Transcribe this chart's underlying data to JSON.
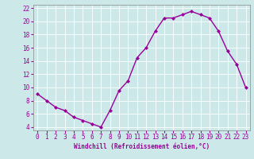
{
  "x": [
    0,
    1,
    2,
    3,
    4,
    5,
    6,
    7,
    8,
    9,
    10,
    11,
    12,
    13,
    14,
    15,
    16,
    17,
    18,
    19,
    20,
    21,
    22,
    23
  ],
  "y": [
    9,
    8,
    7,
    6.5,
    5.5,
    5,
    4.5,
    4,
    6.5,
    9.5,
    11,
    14.5,
    16,
    18.5,
    20.5,
    20.5,
    21,
    21.5,
    21,
    20.5,
    18.5,
    15.5,
    13.5,
    10
  ],
  "line_color": "#990099",
  "marker": "D",
  "marker_size": 2.0,
  "linewidth": 1.0,
  "xlabel": "Windchill (Refroidissement éolien,°C)",
  "xlabel_fontsize": 5.5,
  "ylim": [
    3.5,
    22.5
  ],
  "xlim": [
    -0.5,
    23.5
  ],
  "yticks": [
    4,
    6,
    8,
    10,
    12,
    14,
    16,
    18,
    20,
    22
  ],
  "xticks": [
    0,
    1,
    2,
    3,
    4,
    5,
    6,
    7,
    8,
    9,
    10,
    11,
    12,
    13,
    14,
    15,
    16,
    17,
    18,
    19,
    20,
    21,
    22,
    23
  ],
  "background_color": "#cce8e8",
  "grid_color": "#b0d8d8",
  "tick_color": "#990099",
  "tick_fontsize": 5.5,
  "spine_color": "#888888"
}
